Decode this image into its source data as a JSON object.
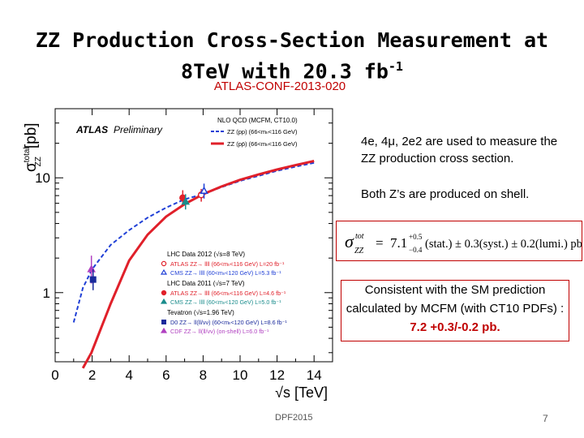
{
  "slide": {
    "title_line1": "ZZ Production Cross-Section Measurement at",
    "title_line2": "8TeV with 20.3 fb",
    "title_sup": "-1",
    "conf_ref": "ATLAS-CONF-2013-020",
    "bullet1": "4e, 4μ, 2e2 are used to measure the ZZ production cross section.",
    "bullet2": "Both Z’s are produced on shell.",
    "formula": {
      "lhs": "σ",
      "lhs_sup": "tot",
      "lhs_sub": "ZZ",
      "eq": "=",
      "central": "7.1",
      "stat_up": "+0.5",
      "stat_down": "−0.4",
      "stat_label": "(stat.) ± 0.3(syst.) ± 0.2(lumi.) pb."
    },
    "consistent_text": "Consistent with the SM prediction calculated by MCFM (with CT10 PDFs) :",
    "consistent_value": "7.2 +0.3/-0.2 pb.",
    "footer_left": "DPF2015",
    "page_number": "7"
  },
  "chart_data": {
    "type": "line",
    "ylabel": "σ",
    "ylabel_sup": "total",
    "ylabel_sub": "ZZ",
    "ylabel_unit": "[pb]",
    "xlabel": "√s [TeV]",
    "brand": "ATLAS",
    "brand_suffix": "Preliminary",
    "y_scale": "log",
    "xlim": [
      0,
      15
    ],
    "ylim": [
      0.25,
      40
    ],
    "x_ticks": [
      0,
      2,
      4,
      6,
      8,
      10,
      12,
      14
    ],
    "y_ticks": [
      {
        "value": 1,
        "label": "1"
      },
      {
        "value": 10,
        "label": "10"
      }
    ],
    "legend_top": {
      "header": "NLO QCD (MCFM, CT10.0)",
      "entries": [
        {
          "label": "ZZ (pp) (66<mₗₗ<116 GeV)",
          "color": "#1f3fd6",
          "style": "dashed"
        },
        {
          "label": "ZZ (pp̄) (66<mₗₗ<116 GeV)",
          "color": "#e0202a",
          "style": "solid"
        }
      ]
    },
    "legend_bottom": [
      {
        "header": "LHC Data 2012 (√s=8 TeV)",
        "entries": [
          {
            "label": "ATLAS ZZ→ llll (66<mₗₗ<116 GeV) L=20 fb⁻¹",
            "color": "#e0202a",
            "marker": "circle-open"
          },
          {
            "label": "CMS ZZ→ llll (60<mₗₗ<120 GeV) L=5.3 fb⁻¹",
            "color": "#1f3fd6",
            "marker": "triangle-open"
          }
        ]
      },
      {
        "header": "LHC Data 2011 (√s=7 TeV)",
        "entries": [
          {
            "label": "ATLAS ZZ→ llll (66<mₗₗ<116 GeV) L=4.6 fb⁻¹",
            "color": "#e0202a",
            "marker": "circle"
          },
          {
            "label": "CMS ZZ→ llll (60<mₗₗ<120 GeV) L=5.0 fb⁻¹",
            "color": "#1a8c8c",
            "marker": "triangle"
          }
        ]
      },
      {
        "header": "Tevatron (√s=1.96 TeV)",
        "entries": [
          {
            "label": "D0 ZZ→ ll(ll/νν) (60<mₗₗ<120 GeV) L=8.6 fb⁻¹",
            "color": "#1a2a9c",
            "marker": "square"
          },
          {
            "label": "CDF ZZ→ ll(ll/νν) (on-shell) L=6.0 fb⁻¹",
            "color": "#b040c0",
            "marker": "triangle"
          }
        ]
      }
    ],
    "series": [
      {
        "name": "ZZ (pp)",
        "color": "#1f3fd6",
        "style": "dashed",
        "x": [
          1.0,
          1.5,
          2,
          3,
          4,
          5,
          6,
          7,
          8,
          9,
          10,
          11,
          12,
          13,
          14
        ],
        "y": [
          0.55,
          1.1,
          1.6,
          2.6,
          3.5,
          4.5,
          5.5,
          6.5,
          7.2,
          8.3,
          9.4,
          10.4,
          11.5,
          12.5,
          13.5
        ]
      },
      {
        "name": "ZZ (pp̄)",
        "color": "#e0202a",
        "style": "solid",
        "x": [
          1.5,
          1.96,
          3,
          4,
          5,
          6,
          7,
          8,
          9,
          10,
          11,
          12,
          13,
          14
        ],
        "y": [
          0.22,
          0.3,
          0.8,
          1.9,
          3.2,
          4.6,
          5.9,
          7.2,
          8.4,
          9.6,
          10.7,
          11.8,
          12.9,
          14.0
        ]
      }
    ],
    "points": [
      {
        "x": 1.96,
        "y": 1.6,
        "err": [
          1.2,
          2.1
        ],
        "color": "#b040c0",
        "marker": "triangle"
      },
      {
        "x": 2.05,
        "y": 1.3,
        "err": [
          1.05,
          1.6
        ],
        "color": "#1a2a9c",
        "marker": "square"
      },
      {
        "x": 6.9,
        "y": 6.7,
        "err": [
          5.8,
          7.8
        ],
        "color": "#e0202a",
        "marker": "circle"
      },
      {
        "x": 7.05,
        "y": 6.2,
        "err": [
          5.3,
          7.2
        ],
        "color": "#1a8c8c",
        "marker": "triangle"
      },
      {
        "x": 7.9,
        "y": 7.1,
        "err": [
          6.2,
          8.0
        ],
        "color": "#e0202a",
        "marker": "circle-open"
      },
      {
        "x": 8.05,
        "y": 7.7,
        "err": [
          6.6,
          8.9
        ],
        "color": "#1f3fd6",
        "marker": "triangle-open"
      }
    ]
  }
}
